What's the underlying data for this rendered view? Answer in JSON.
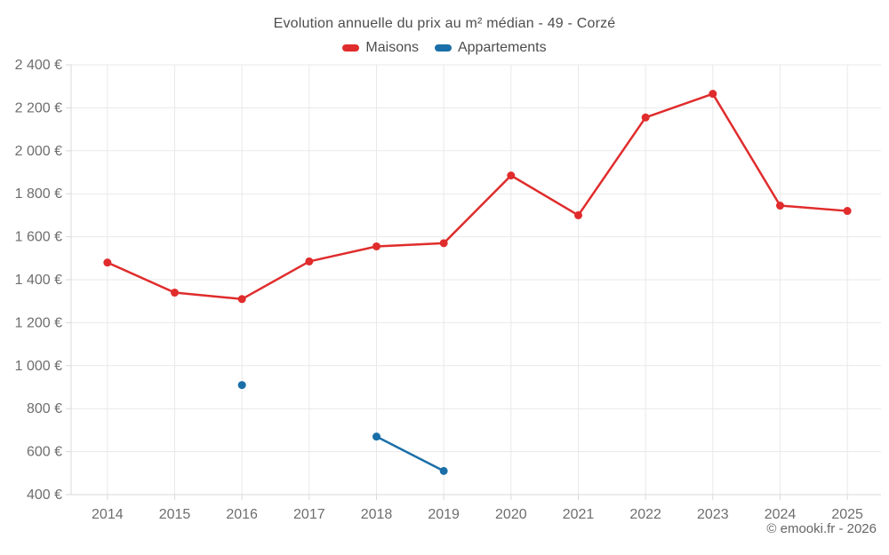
{
  "chart_data": {
    "type": "line",
    "title": "Evolution annuelle du prix au m² médian - 49 - Corzé",
    "categories": [
      "2014",
      "2015",
      "2016",
      "2017",
      "2018",
      "2019",
      "2020",
      "2021",
      "2022",
      "2023",
      "2024",
      "2025"
    ],
    "series": [
      {
        "name": "Maisons",
        "color": "#e02c2c",
        "values": [
          1480,
          1340,
          1310,
          1485,
          1555,
          1570,
          1885,
          1700,
          2155,
          2265,
          1745,
          1720
        ]
      },
      {
        "name": "Appartements",
        "color": "#1a6fa8",
        "values": [
          null,
          null,
          910,
          null,
          670,
          510,
          null,
          null,
          null,
          null,
          null,
          null
        ]
      }
    ],
    "ylim": [
      400,
      2400
    ],
    "ytick_step": 200,
    "ytick_labels": [
      "400 €",
      "600 €",
      "800 €",
      "1 000 €",
      "1 200 €",
      "1 400 €",
      "1 600 €",
      "1 800 €",
      "2 000 €",
      "2 200 €",
      "2 400 €"
    ],
    "grid": true,
    "legend_position": "top",
    "marker": "circle",
    "xlabel": "",
    "ylabel": ""
  },
  "footer": {
    "copyright": "© emooki.fr - 2026"
  },
  "style": {
    "background": "#ffffff",
    "grid_color": "#e9e9e9",
    "axis_color": "#d9d9d9",
    "tick_label_color": "#6e6e6e",
    "title_color": "#4d4d4d",
    "legend_text_color": "#4d4d4d",
    "footer_color": "#666666",
    "line_width": 2.5,
    "marker_radius": 4.5
  }
}
